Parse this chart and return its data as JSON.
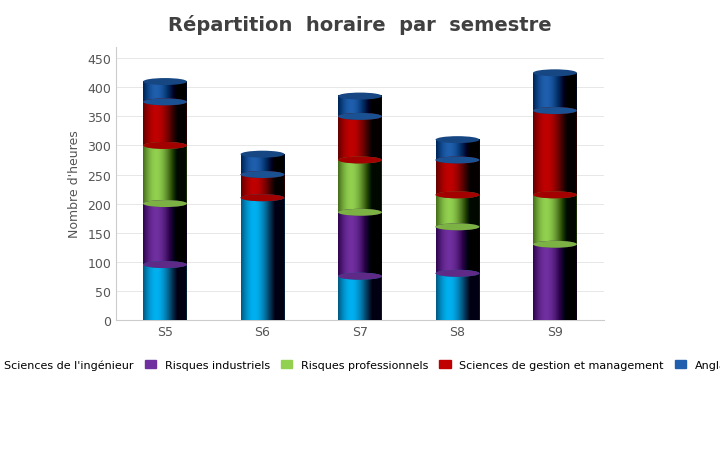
{
  "title": "Répartition  horaire  par  semestre",
  "ylabel": "Nombre d'heures",
  "categories": [
    "S5",
    "S6",
    "S7",
    "S8",
    "S9"
  ],
  "series": {
    "Sciences de l'ingénieur": [
      95,
      210,
      75,
      80,
      0
    ],
    "Risques industriels": [
      105,
      0,
      110,
      80,
      130
    ],
    "Risques professionnels": [
      100,
      0,
      90,
      55,
      85
    ],
    "Sciences de gestion et management": [
      75,
      40,
      75,
      60,
      145
    ],
    "Anglais": [
      35,
      35,
      35,
      35,
      65
    ]
  },
  "colors": {
    "Sciences de l'ingénieur": "#00B0F0",
    "Risques industriels": "#7030A0",
    "Risques professionnels": "#92D050",
    "Sciences de gestion et management": "#C00000",
    "Anglais": "#1F5FAD"
  },
  "ylim": [
    0,
    470
  ],
  "yticks": [
    0,
    50,
    100,
    150,
    200,
    250,
    300,
    350,
    400,
    450
  ],
  "bar_width": 0.45,
  "cyl_aspect": 12,
  "background_color": "#ffffff",
  "title_fontsize": 14,
  "axis_label_fontsize": 9,
  "tick_fontsize": 9,
  "legend_fontsize": 8
}
